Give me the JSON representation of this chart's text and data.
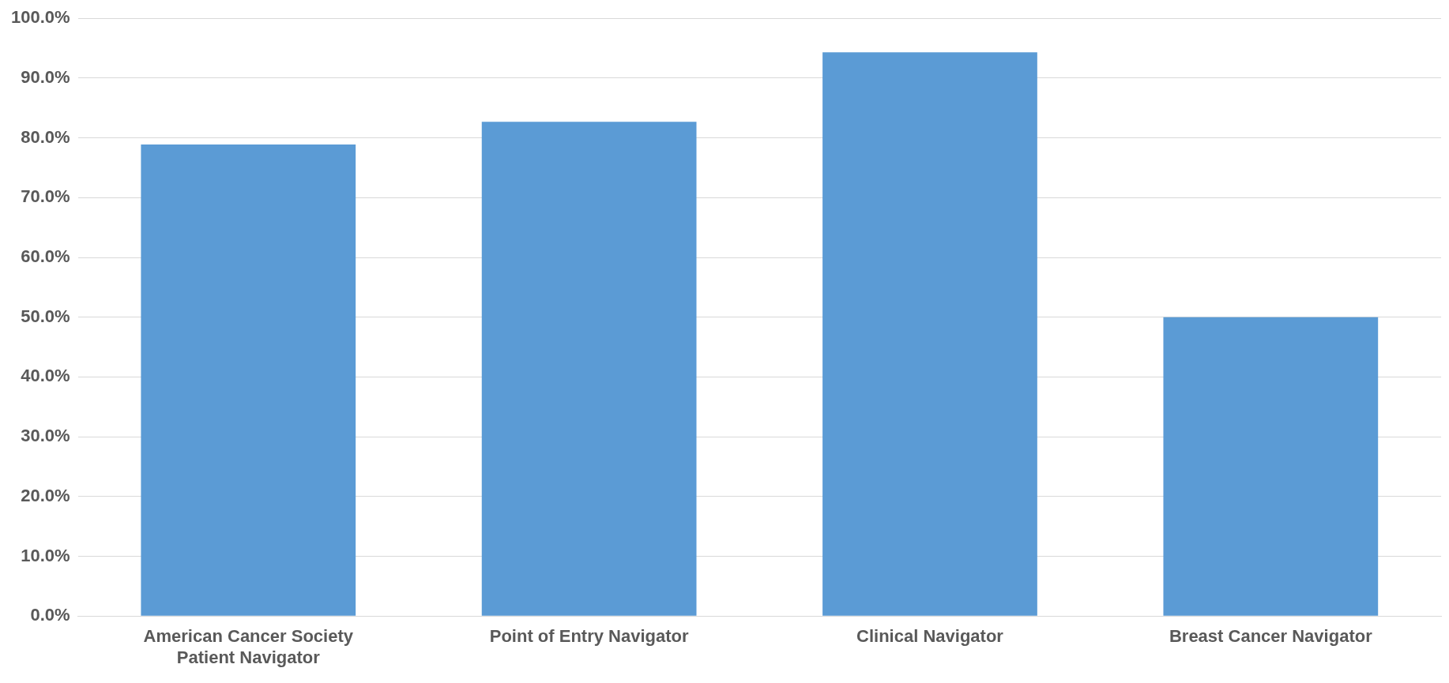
{
  "chart_data": {
    "type": "bar",
    "categories": [
      "American Cancer Society Patient Navigator",
      "Point of Entry Navigator",
      "Clinical Navigator",
      "Breast Cancer Navigator"
    ],
    "values": [
      78.9,
      82.7,
      94.3,
      50.0
    ],
    "color": "#5b9bd5",
    "ylim": [
      0,
      100
    ],
    "yticks": [
      {
        "value": 0,
        "label": "0.0%"
      },
      {
        "value": 10,
        "label": "10.0%"
      },
      {
        "value": 20,
        "label": "20.0%"
      },
      {
        "value": 30,
        "label": "30.0%"
      },
      {
        "value": 40,
        "label": "40.0%"
      },
      {
        "value": 50,
        "label": "50.0%"
      },
      {
        "value": 60,
        "label": "60.0%"
      },
      {
        "value": 70,
        "label": "70.0%"
      },
      {
        "value": 80,
        "label": "80.0%"
      },
      {
        "value": 90,
        "label": "90.0%"
      },
      {
        "value": 100,
        "label": "100.0%"
      }
    ],
    "grid": "y"
  }
}
